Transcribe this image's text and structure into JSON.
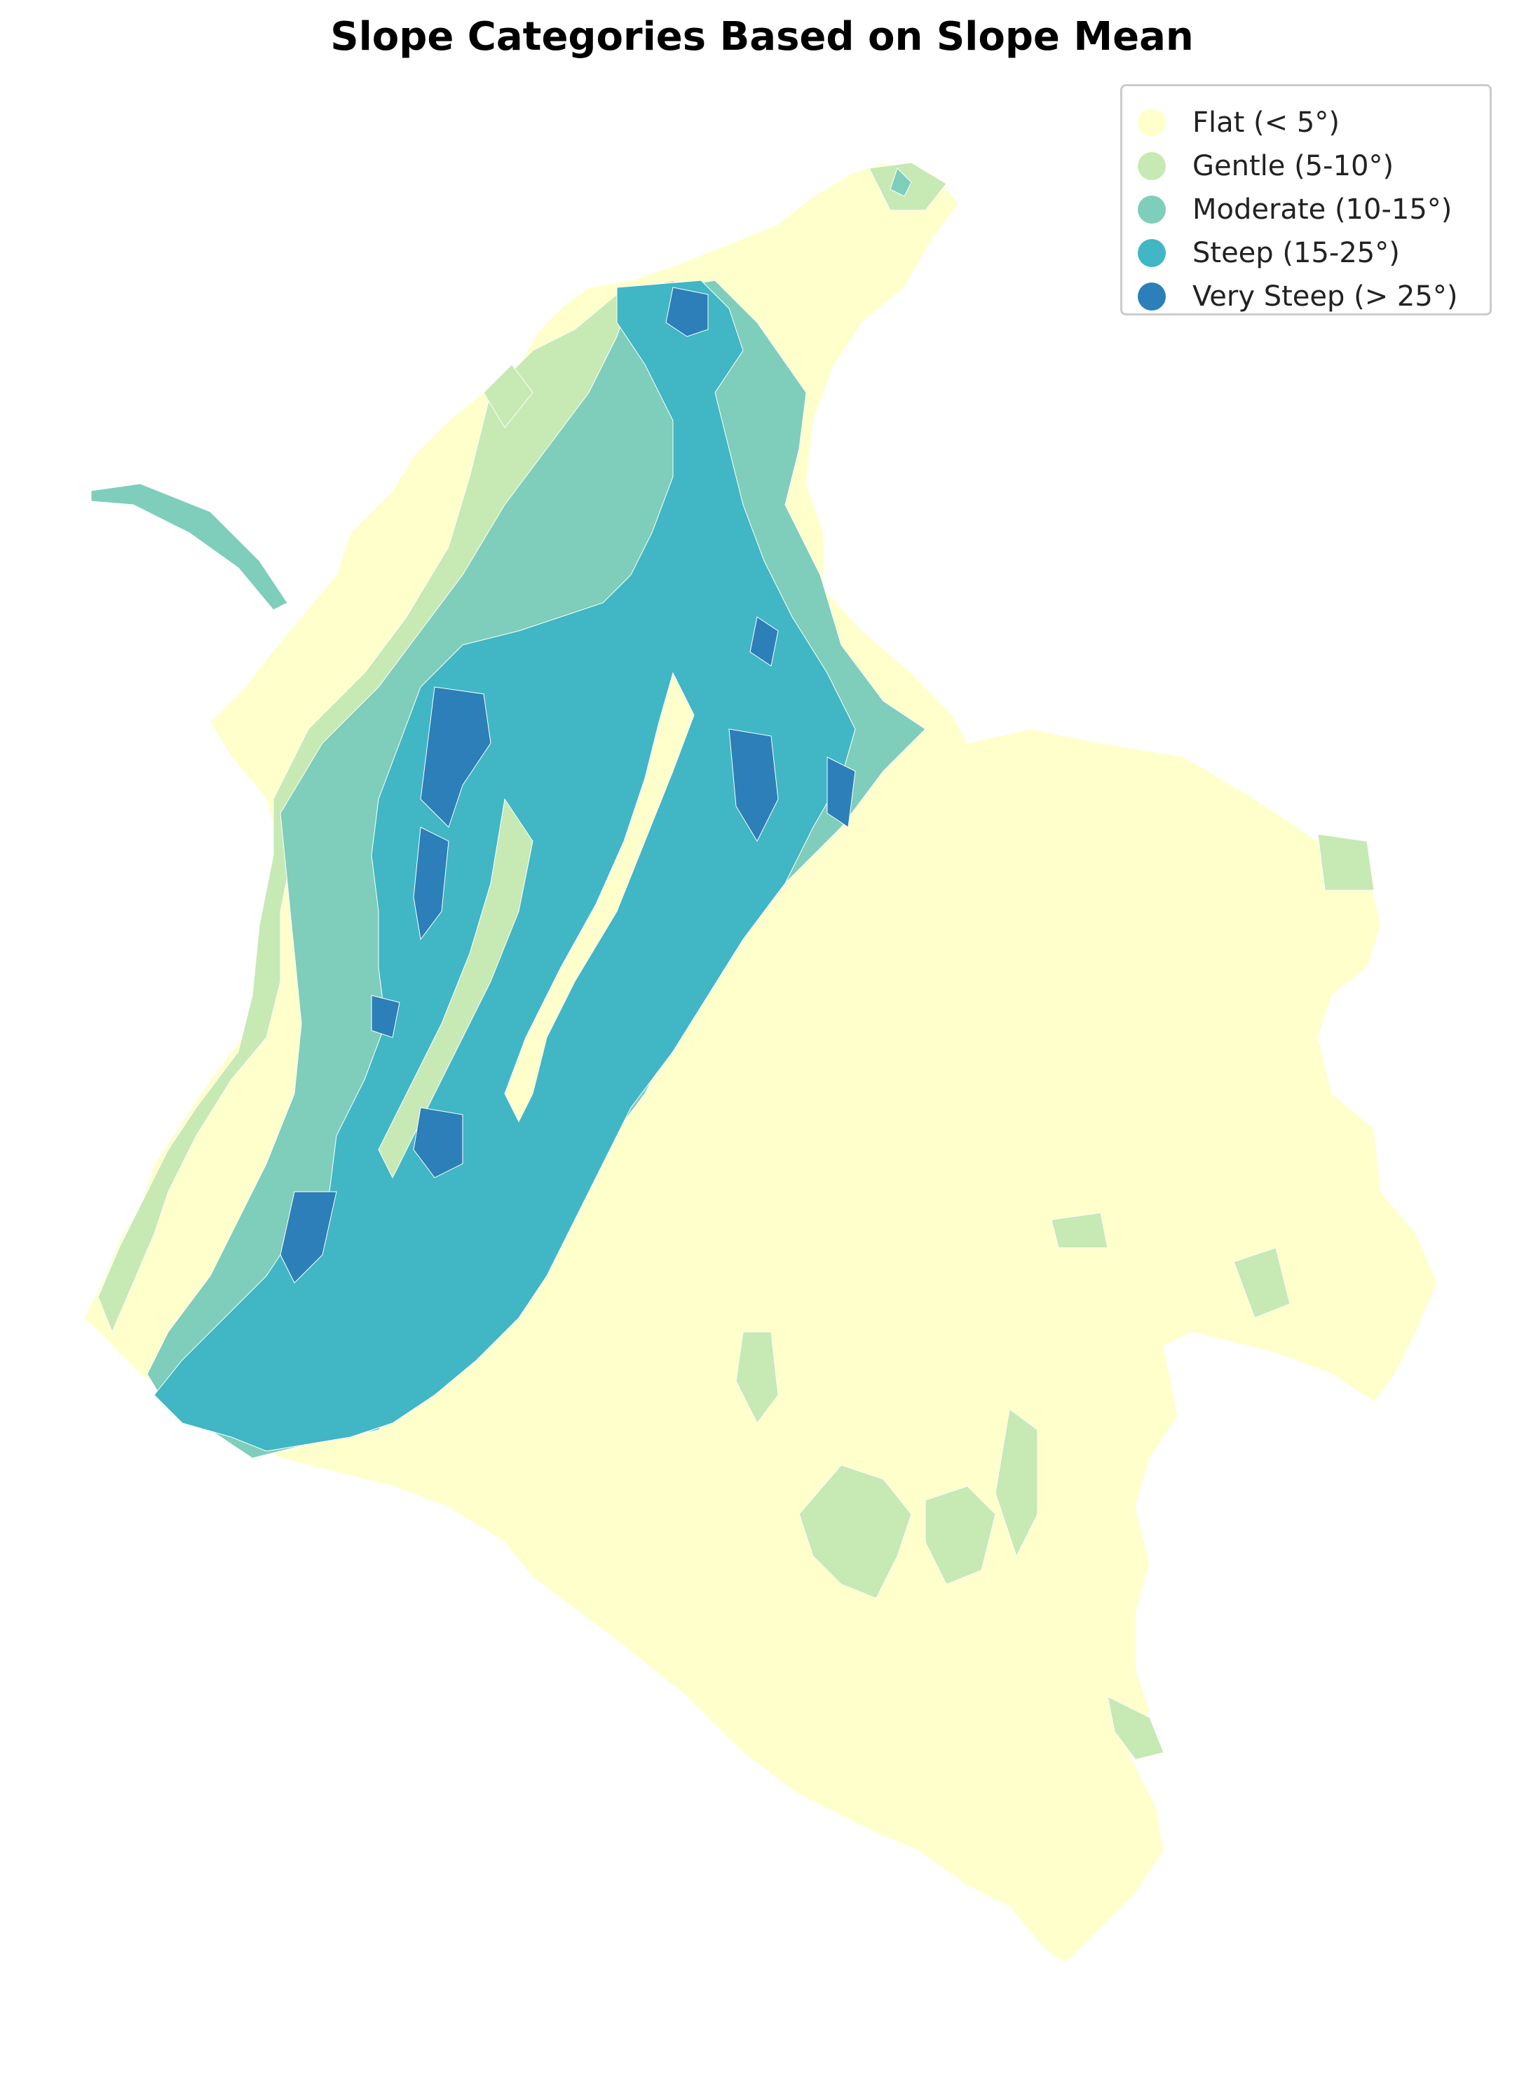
{
  "title": "Slope Categories Based on Slope Mean",
  "legend": {
    "items": [
      {
        "label": "Flat (< 5°)",
        "color": "#ffffcc"
      },
      {
        "label": "Gentle (5-10°)",
        "color": "#c7e9b4"
      },
      {
        "label": "Moderate (10-15°)",
        "color": "#7fcdbb"
      },
      {
        "label": "Steep (15-25°)",
        "color": "#41b6c4"
      },
      {
        "label": "Very Steep (> 25°)",
        "color": "#2c7fb8"
      }
    ]
  },
  "map": {
    "region": "Colombia",
    "boundary_color": "#ffffff"
  }
}
